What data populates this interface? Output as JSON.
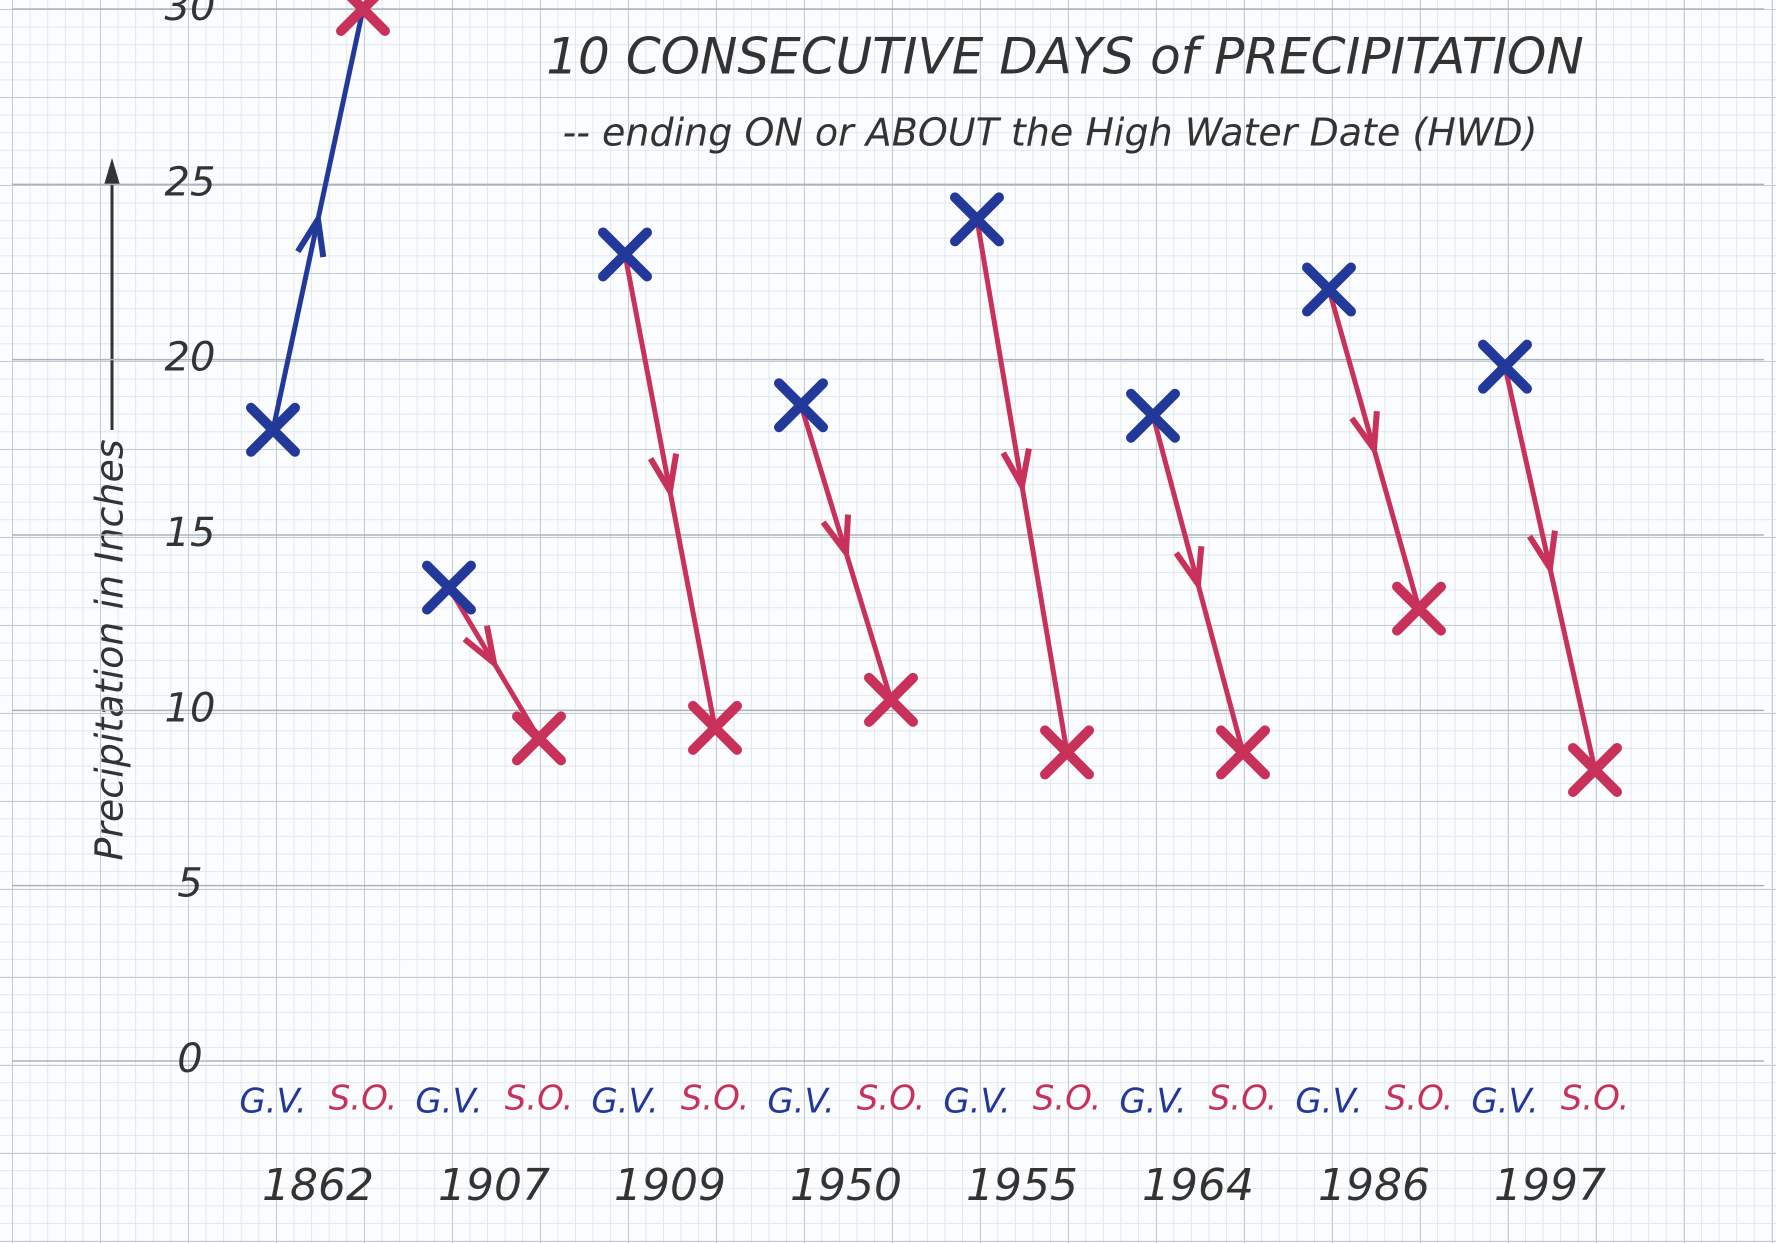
{
  "chart_data": {
    "type": "arrow-pairs",
    "title": "10 CONSECUTIVE DAYS of PRECIPITATION",
    "subtitle": "-- ending ON or ABOUT the High Water Date (HWD)",
    "y_label": "Precipitation in Inches",
    "categories": [
      "1862",
      "1907",
      "1909",
      "1950",
      "1955",
      "1964",
      "1986",
      "1997"
    ],
    "series": [
      {
        "name": "G.V.",
        "color": "#23399a",
        "values": [
          18,
          13.5,
          23,
          18.7,
          24,
          18.4,
          22,
          19.8
        ]
      },
      {
        "name": "S.O.",
        "color": "#c8325a",
        "values": [
          30,
          9.2,
          9.5,
          10.3,
          8.8,
          8.8,
          12.9,
          8.3
        ]
      }
    ],
    "ylim": [
      0,
      30
    ],
    "yticks": [
      0,
      5,
      10,
      15,
      20,
      25,
      30
    ],
    "grid": true
  }
}
